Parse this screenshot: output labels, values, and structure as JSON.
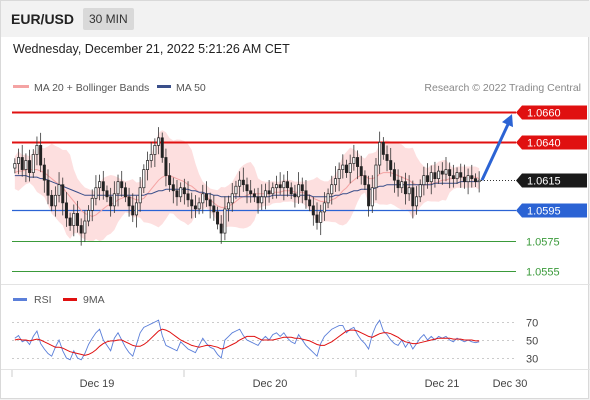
{
  "header": {
    "symbol": "EUR/USD",
    "timeframe": "30 MIN"
  },
  "timestamp": "Wednesday, December 21, 2022 5:21:26 AM CET",
  "legend": {
    "ma20": "MA 20 + Bollinger Bands",
    "ma50": "MA 50",
    "research": "Research © 2022 Trading Central"
  },
  "rsi_legend": {
    "rsi": "RSI",
    "ma9": "9MA"
  },
  "x_labels": [
    "Dec 19",
    "Dec 20",
    "Dec 21",
    "Dec 30"
  ],
  "colors": {
    "ma20": "#f4a3a3",
    "ma50": "#3a4f8a",
    "resistance": "#e01010",
    "support_blue": "#2b63d4",
    "support_green": "#3a9a3a",
    "band": "#fdd9d9",
    "rsi": "#5b7fd9",
    "rsi_ma": "#e01010",
    "arrow": "#2b63d4"
  },
  "chart_data": {
    "type": "candlestick",
    "symbol": "EUR/USD",
    "ylim": [
      1.0547,
      1.067
    ],
    "levels": [
      {
        "value": 1.066,
        "label": "1.0660",
        "kind": "resistance"
      },
      {
        "value": 1.064,
        "label": "1.0640",
        "kind": "resistance"
      },
      {
        "value": 1.0615,
        "label": "1.0615",
        "kind": "last"
      },
      {
        "value": 1.0595,
        "label": "1.0595",
        "kind": "support"
      },
      {
        "value": 1.0575,
        "label": "1.0575",
        "kind": "support2"
      },
      {
        "value": 1.0555,
        "label": "1.0555",
        "kind": "support2"
      }
    ],
    "closes": [
      1.0626,
      1.063,
      1.0622,
      1.0628,
      1.062,
      1.0632,
      1.0638,
      1.0625,
      1.0615,
      1.0605,
      1.0598,
      1.0605,
      1.0612,
      1.06,
      1.059,
      1.0585,
      1.0593,
      1.0585,
      1.058,
      1.0588,
      1.0595,
      1.0603,
      1.061,
      1.0614,
      1.0608,
      1.0604,
      1.0598,
      1.0606,
      1.0614,
      1.061,
      1.0604,
      1.0598,
      1.0592,
      1.06,
      1.061,
      1.0622,
      1.0628,
      1.0632,
      1.0638,
      1.0643,
      1.063,
      1.0618,
      1.0612,
      1.0608,
      1.0604,
      1.061,
      1.0606,
      1.0602,
      1.0598,
      1.0596,
      1.06,
      1.0606,
      1.0602,
      1.0598,
      1.0594,
      1.0586,
      1.058,
      1.0596,
      1.06,
      1.0606,
      1.0611,
      1.0615,
      1.0612,
      1.0608,
      1.0606,
      1.0604,
      1.06,
      1.0604,
      1.0608,
      1.0606,
      1.061,
      1.0612,
      1.061,
      1.0614,
      1.061,
      1.0606,
      1.0604,
      1.0612,
      1.0608,
      1.0602,
      1.0598,
      1.0592,
      1.0587,
      1.0594,
      1.06,
      1.0606,
      1.0612,
      1.0616,
      1.0622,
      1.0625,
      1.062,
      1.0626,
      1.063,
      1.0624,
      1.0618,
      1.0612,
      1.0598,
      1.061,
      1.0625,
      1.064,
      1.0632,
      1.0628,
      1.0622,
      1.0615,
      1.061,
      1.0614,
      1.0606,
      1.061,
      1.0598,
      1.0604,
      1.0612,
      1.0618,
      1.0614,
      1.062,
      1.0616,
      1.0621,
      1.0619,
      1.0622,
      1.0618,
      1.0616,
      1.062,
      1.0617,
      1.0614,
      1.0618,
      1.0616,
      1.0614,
      1.0615
    ],
    "ma20": [
      1.062,
      1.0621,
      1.0621,
      1.0622,
      1.0622,
      1.0622,
      1.0622,
      1.0621,
      1.062,
      1.0618,
      1.0616,
      1.0614,
      1.0612,
      1.061,
      1.0607,
      1.0604,
      1.0601,
      1.0598,
      1.0595,
      1.0593,
      1.0592,
      1.0591,
      1.0592,
      1.0594,
      1.0596,
      1.0598,
      1.0599,
      1.06,
      1.0602,
      1.0603,
      1.0604,
      1.0604,
      1.0603,
      1.0602,
      1.0602,
      1.0603,
      1.0606,
      1.0609,
      1.0612,
      1.0615,
      1.0617,
      1.0618,
      1.0618,
      1.0617,
      1.0616,
      1.0615,
      1.0614,
      1.0612,
      1.0611,
      1.0609,
      1.0607,
      1.0605,
      1.0604,
      1.0602,
      1.06,
      1.0598,
      1.0597,
      1.0597,
      1.0598,
      1.0599,
      1.0601,
      1.0603,
      1.0604,
      1.0605,
      1.0606,
      1.0606,
      1.0606,
      1.0606,
      1.0606,
      1.0606,
      1.0607,
      1.0607,
      1.0607,
      1.0608,
      1.0608,
      1.0608,
      1.0607,
      1.0607,
      1.0607,
      1.0606,
      1.0605,
      1.0603,
      1.0602,
      1.0601,
      1.0601,
      1.0601,
      1.0602,
      1.0603,
      1.0605,
      1.0608,
      1.061,
      1.0613,
      1.0615,
      1.0617,
      1.0618,
      1.0618,
      1.0616,
      1.0616,
      1.0617,
      1.0619,
      1.062,
      1.062,
      1.062,
      1.0619,
      1.0618,
      1.0617,
      1.0616,
      1.0615,
      1.0613,
      1.0612,
      1.0612,
      1.0612,
      1.0612,
      1.0613,
      1.0613,
      1.0614,
      1.0615,
      1.0615,
      1.0616,
      1.0616,
      1.0617,
      1.0617,
      1.0617,
      1.0617,
      1.0617,
      1.0617,
      1.0616
    ],
    "ma50": [
      1.0618,
      1.0618,
      1.0618,
      1.0618,
      1.0617,
      1.0617,
      1.0617,
      1.0616,
      1.0616,
      1.0615,
      1.0614,
      1.0613,
      1.0612,
      1.0611,
      1.061,
      1.0609,
      1.0608,
      1.0607,
      1.0606,
      1.0605,
      1.0605,
      1.0605,
      1.0605,
      1.0605,
      1.0605,
      1.0605,
      1.0605,
      1.0605,
      1.0605,
      1.0605,
      1.0605,
      1.0605,
      1.0605,
      1.0605,
      1.0605,
      1.0605,
      1.0606,
      1.0606,
      1.0607,
      1.0608,
      1.0608,
      1.0609,
      1.0609,
      1.0609,
      1.0609,
      1.0609,
      1.0609,
      1.0609,
      1.0608,
      1.0608,
      1.0607,
      1.0607,
      1.0606,
      1.0606,
      1.0605,
      1.0605,
      1.0604,
      1.0604,
      1.0604,
      1.0604,
      1.0604,
      1.0604,
      1.0604,
      1.0604,
      1.0604,
      1.0604,
      1.0604,
      1.0604,
      1.0604,
      1.0604,
      1.0605,
      1.0605,
      1.0605,
      1.0605,
      1.0605,
      1.0605,
      1.0605,
      1.0605,
      1.0605,
      1.0605,
      1.0605,
      1.0604,
      1.0604,
      1.0604,
      1.0604,
      1.0604,
      1.0604,
      1.0605,
      1.0605,
      1.0606,
      1.0606,
      1.0607,
      1.0608,
      1.0608,
      1.0609,
      1.0609,
      1.0609,
      1.0609,
      1.061,
      1.0611,
      1.0611,
      1.0612,
      1.0612,
      1.0612,
      1.0612,
      1.0612,
      1.0612,
      1.0612,
      1.0612,
      1.0612,
      1.0612,
      1.0612,
      1.0612,
      1.0612,
      1.0613,
      1.0613,
      1.0613,
      1.0613,
      1.0613,
      1.0613,
      1.0613,
      1.0614,
      1.0614,
      1.0614,
      1.0614,
      1.0614,
      1.0614
    ],
    "forecast_arrow": {
      "from": 1.0615,
      "to": 1.066
    },
    "rsi": {
      "ylim": [
        20,
        80
      ],
      "ticks": [
        70,
        50,
        30
      ],
      "values": [
        52,
        55,
        48,
        50,
        45,
        54,
        60,
        46,
        40,
        35,
        32,
        42,
        50,
        38,
        30,
        28,
        38,
        30,
        28,
        35,
        45,
        52,
        58,
        62,
        50,
        44,
        38,
        52,
        58,
        50,
        42,
        36,
        32,
        45,
        58,
        64,
        66,
        68,
        70,
        72,
        55,
        44,
        42,
        40,
        38,
        48,
        44,
        40,
        38,
        36,
        44,
        52,
        46,
        42,
        40,
        34,
        30,
        50,
        54,
        58,
        60,
        62,
        55,
        50,
        48,
        46,
        44,
        50,
        54,
        50,
        56,
        58,
        54,
        58,
        52,
        48,
        46,
        56,
        50,
        44,
        40,
        36,
        32,
        46,
        54,
        58,
        62,
        64,
        66,
        66,
        58,
        62,
        64,
        56,
        50,
        46,
        40,
        56,
        66,
        72,
        60,
        56,
        50,
        46,
        44,
        50,
        42,
        48,
        40,
        46,
        52,
        56,
        50,
        54,
        50,
        54,
        52,
        54,
        50,
        48,
        52,
        50,
        48,
        50,
        48,
        47,
        48
      ],
      "ma9": [
        50,
        51,
        50,
        50,
        49,
        50,
        51,
        50,
        48,
        46,
        44,
        42,
        42,
        41,
        39,
        37,
        36,
        35,
        34,
        33,
        34,
        36,
        39,
        43,
        46,
        48,
        49,
        49,
        50,
        50,
        48,
        46,
        44,
        43,
        43,
        45,
        48,
        52,
        56,
        60,
        62,
        61,
        59,
        56,
        53,
        50,
        48,
        46,
        44,
        43,
        42,
        43,
        44,
        44,
        43,
        42,
        40,
        41,
        43,
        45,
        47,
        50,
        52,
        54,
        54,
        54,
        52,
        50,
        50,
        50,
        50,
        51,
        52,
        53,
        53,
        53,
        52,
        52,
        51,
        50,
        49,
        47,
        45,
        44,
        44,
        46,
        48,
        51,
        54,
        57,
        60,
        61,
        61,
        60,
        58,
        56,
        54,
        53,
        55,
        57,
        58,
        58,
        57,
        55,
        53,
        50,
        48,
        47,
        46,
        46,
        47,
        48,
        49,
        50,
        51,
        52,
        52,
        52,
        52,
        51,
        51,
        51,
        50,
        50,
        50,
        49,
        49
      ]
    }
  }
}
